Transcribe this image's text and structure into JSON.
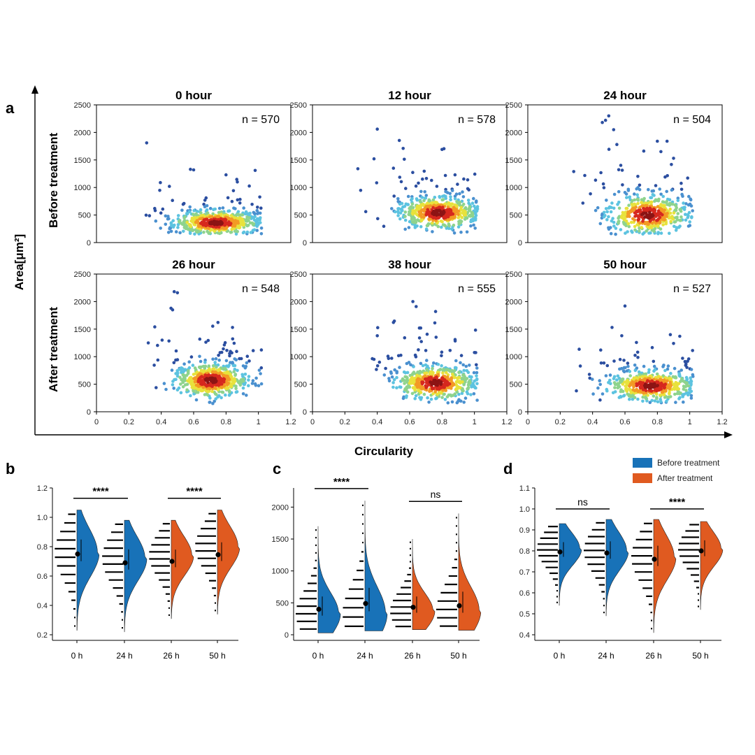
{
  "panel_labels": {
    "a": "a",
    "b": "b",
    "c": "c",
    "d": "d"
  },
  "panel_a": {
    "ylabel": "Area[μm²]",
    "xlabel": "Circularity",
    "row_labels": [
      "Before treatment",
      "After treatment"
    ],
    "yticks": [
      "0",
      "500",
      "1000",
      "1500",
      "2000",
      "2500"
    ],
    "xticks": [
      "0",
      "0.2",
      "0.4",
      "0.6",
      "0.8",
      "1",
      "1.2"
    ]
  },
  "legend": {
    "before": "Before treatment",
    "after": "After treatment",
    "before_color": "#1872b8",
    "after_color": "#e05a20"
  },
  "colormap": [
    "#2b4ea0",
    "#4a90cf",
    "#5cc3e0",
    "#8ed38d",
    "#e8e23c",
    "#f39a25",
    "#d6281e",
    "#8c1414"
  ],
  "chart_data": [
    {
      "type": "scatter",
      "title": "0 hour",
      "annotation": "n = 570",
      "n": 570,
      "xlim": [
        0,
        1.2
      ],
      "ylim": [
        0,
        2500
      ],
      "cx": 0.74,
      "cy": 360,
      "sx": 0.13,
      "sy": 110,
      "xmin": 0.3,
      "xmax": 1.02,
      "outliers": [
        [
          0.31,
          1810
        ],
        [
          0.58,
          1330
        ],
        [
          0.6,
          1320
        ],
        [
          0.98,
          1310
        ],
        [
          0.87,
          1100
        ],
        [
          0.45,
          1020
        ],
        [
          0.8,
          1230
        ]
      ]
    },
    {
      "type": "scatter",
      "title": "12 hour",
      "annotation": "n = 578",
      "n": 578,
      "xlim": [
        0,
        1.2
      ],
      "ylim": [
        0,
        2500
      ],
      "cx": 0.78,
      "cy": 540,
      "sx": 0.12,
      "sy": 140,
      "xmin": 0.27,
      "xmax": 1.02,
      "outliers": [
        [
          0.4,
          2060
        ],
        [
          0.56,
          1710
        ],
        [
          0.8,
          1690
        ],
        [
          0.28,
          1340
        ],
        [
          0.38,
          1520
        ],
        [
          0.88,
          1230
        ],
        [
          0.5,
          1350
        ]
      ]
    },
    {
      "type": "scatter",
      "title": "24 hour",
      "annotation": "n = 504",
      "n": 504,
      "xlim": [
        0,
        1.2
      ],
      "ylim": [
        0,
        2500
      ],
      "cx": 0.74,
      "cy": 500,
      "sx": 0.12,
      "sy": 170,
      "xmin": 0.25,
      "xmax": 1.02,
      "outliers": [
        [
          0.5,
          2300
        ],
        [
          0.48,
          2220
        ],
        [
          0.46,
          2180
        ],
        [
          0.53,
          2050
        ],
        [
          0.55,
          1780
        ],
        [
          0.8,
          1840
        ],
        [
          0.9,
          1530
        ],
        [
          0.86,
          1840
        ]
      ]
    },
    {
      "type": "scatter",
      "title": "26 hour",
      "annotation": "n = 548",
      "n": 548,
      "xlim": [
        0,
        1.2
      ],
      "ylim": [
        0,
        2500
      ],
      "cx": 0.71,
      "cy": 570,
      "sx": 0.11,
      "sy": 150,
      "xmin": 0.3,
      "xmax": 1.02,
      "outliers": [
        [
          0.48,
          2180
        ],
        [
          0.5,
          2160
        ],
        [
          0.46,
          1880
        ],
        [
          0.47,
          1850
        ],
        [
          0.36,
          1540
        ],
        [
          0.32,
          1250
        ],
        [
          0.75,
          1620
        ],
        [
          0.84,
          1530
        ]
      ]
    },
    {
      "type": "scatter",
      "title": "38 hour",
      "annotation": "n = 555",
      "n": 555,
      "xlim": [
        0,
        1.2
      ],
      "ylim": [
        0,
        2500
      ],
      "cx": 0.76,
      "cy": 520,
      "sx": 0.12,
      "sy": 150,
      "xmin": 0.36,
      "xmax": 1.02,
      "outliers": [
        [
          0.62,
          2000
        ],
        [
          0.64,
          1910
        ],
        [
          0.76,
          1820
        ],
        [
          0.5,
          1620
        ],
        [
          0.66,
          1520
        ],
        [
          0.4,
          1380
        ],
        [
          0.92,
          1020
        ]
      ]
    },
    {
      "type": "scatter",
      "title": "50 hour",
      "annotation": "n = 527",
      "n": 527,
      "xlim": [
        0,
        1.2
      ],
      "ylim": [
        0,
        2500
      ],
      "cx": 0.76,
      "cy": 470,
      "sx": 0.13,
      "sy": 130,
      "xmin": 0.3,
      "xmax": 1.02,
      "outliers": [
        [
          0.6,
          1920
        ],
        [
          0.3,
          380
        ],
        [
          0.52,
          1530
        ],
        [
          0.88,
          1400
        ],
        [
          0.9,
          1240
        ],
        [
          0.58,
          1380
        ],
        [
          0.45,
          1120
        ]
      ]
    },
    {
      "type": "violin",
      "panel": "b",
      "categories": [
        "0 h",
        "24 h",
        "26 h",
        "50 h"
      ],
      "groups": [
        "before",
        "before",
        "after",
        "after"
      ],
      "ylim": [
        0.2,
        1.2
      ],
      "yticks": [
        "0.2",
        "0.4",
        "0.6",
        "0.8",
        "1.0",
        "1.2"
      ],
      "means": [
        0.75,
        0.69,
        0.7,
        0.745
      ],
      "mins": [
        0.23,
        0.22,
        0.31,
        0.34
      ],
      "maxs": [
        1.05,
        0.98,
        0.98,
        1.05
      ],
      "peaks": [
        0.76,
        0.72,
        0.74,
        0.8
      ],
      "sig": [
        {
          "from": 0,
          "to": 1,
          "label": "****",
          "y": 1.13
        },
        {
          "from": 2,
          "to": 3,
          "label": "****",
          "y": 1.13
        }
      ]
    },
    {
      "type": "violin",
      "panel": "c",
      "categories": [
        "0 h",
        "24 h",
        "26 h",
        "50 h"
      ],
      "groups": [
        "before",
        "before",
        "after",
        "after"
      ],
      "ylim": [
        0,
        2300
      ],
      "yticks": [
        "0",
        "500",
        "1000",
        "1500",
        "2000"
      ],
      "means": [
        400,
        490,
        430,
        455
      ],
      "mins": [
        30,
        60,
        80,
        70
      ],
      "maxs": [
        1700,
        2100,
        1500,
        1900
      ],
      "peaks": [
        330,
        340,
        370,
        380
      ],
      "sig": [
        {
          "from": 0,
          "to": 1,
          "label": "****",
          "y": 2290
        },
        {
          "from": 2,
          "to": 3,
          "label": "ns",
          "y": 2090
        }
      ]
    },
    {
      "type": "violin",
      "panel": "d",
      "categories": [
        "0 h",
        "24 h",
        "26 h",
        "50 h"
      ],
      "groups": [
        "before",
        "before",
        "after",
        "after"
      ],
      "ylim": [
        0.4,
        1.1
      ],
      "yticks": [
        "0.4",
        "0.5",
        "0.6",
        "0.7",
        "0.8",
        "0.9",
        "1.0",
        "1.1"
      ],
      "means": [
        0.795,
        0.79,
        0.76,
        0.8
      ],
      "mins": [
        0.54,
        0.49,
        0.41,
        0.52
      ],
      "maxs": [
        0.93,
        0.95,
        0.95,
        0.94
      ],
      "peaks": [
        0.81,
        0.8,
        0.77,
        0.81
      ],
      "sig": [
        {
          "from": 0,
          "to": 1,
          "label": "ns",
          "y": 1.0
        },
        {
          "from": 2,
          "to": 3,
          "label": "****",
          "y": 1.0
        }
      ]
    }
  ]
}
